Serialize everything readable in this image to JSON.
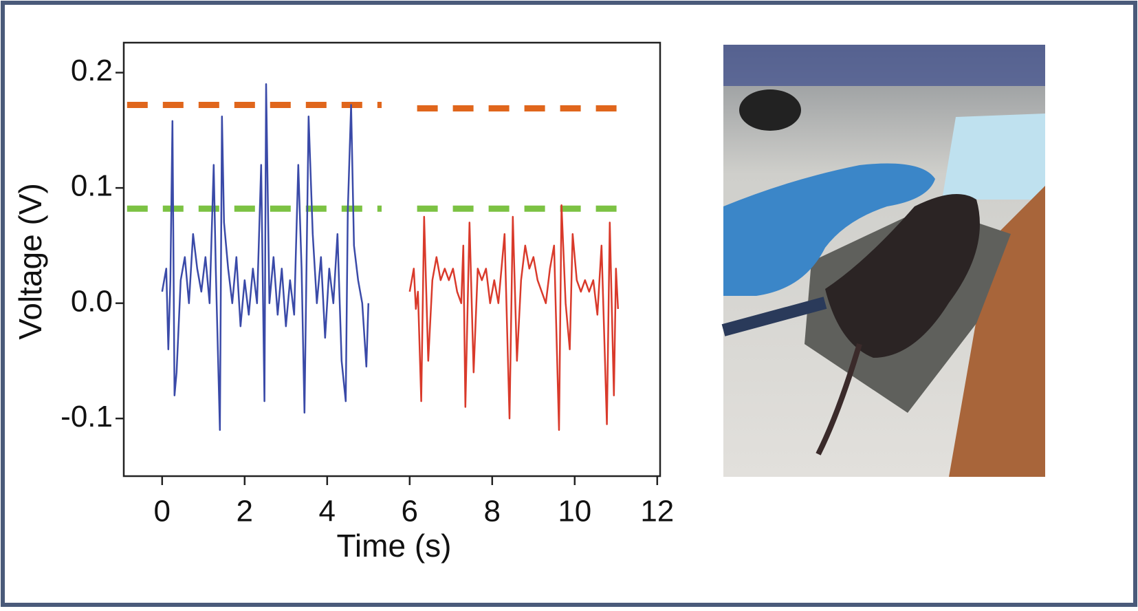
{
  "chart_data": {
    "type": "line",
    "xlabel": "Time (s)",
    "ylabel": "Voltage (V)",
    "xlim": [
      -0.93,
      12.07
    ],
    "ylim": [
      -0.15,
      0.226
    ],
    "xticks": [
      0,
      2,
      4,
      6,
      8,
      10,
      12
    ],
    "yticks": [
      -0.1,
      {
        "value": 0,
        "label": "0.0"
      },
      0.1,
      0.2
    ],
    "series": [
      {
        "color": "#3a4aa8",
        "x": [
          0.0,
          0.1,
          0.15,
          0.2,
          0.25,
          0.3,
          0.35,
          0.45,
          0.55,
          0.65,
          0.75,
          0.85,
          0.95,
          1.05,
          1.15,
          1.25,
          1.3,
          1.4,
          1.45,
          1.5,
          1.6,
          1.7,
          1.8,
          1.9,
          2.0,
          2.1,
          2.2,
          2.3,
          2.4,
          2.48,
          2.52,
          2.6,
          2.7,
          2.8,
          2.9,
          3.0,
          3.1,
          3.2,
          3.3,
          3.38,
          3.45,
          3.55,
          3.65,
          3.75,
          3.85,
          3.95,
          4.05,
          4.15,
          4.25,
          4.35,
          4.45,
          4.5,
          4.58,
          4.65,
          4.75,
          4.85,
          4.95,
          5.0
        ],
        "values": [
          0.01,
          0.03,
          -0.04,
          0.02,
          0.158,
          -0.08,
          -0.06,
          0.02,
          0.04,
          0.0,
          0.06,
          0.03,
          0.01,
          0.04,
          0.0,
          0.12,
          0.03,
          -0.11,
          0.162,
          0.07,
          0.03,
          0.0,
          0.04,
          -0.02,
          0.02,
          -0.01,
          0.03,
          0.0,
          0.12,
          -0.085,
          0.19,
          0.0,
          0.04,
          -0.01,
          0.03,
          -0.02,
          0.02,
          -0.01,
          0.12,
          0.03,
          -0.095,
          0.162,
          0.06,
          0.0,
          0.04,
          -0.03,
          0.03,
          0.0,
          0.06,
          -0.05,
          -0.085,
          0.08,
          0.172,
          0.05,
          0.02,
          0.0,
          -0.055,
          0.0
        ]
      },
      {
        "color": "#d93a2b",
        "x": [
          6.0,
          6.1,
          6.15,
          6.2,
          6.28,
          6.35,
          6.45,
          6.55,
          6.65,
          6.75,
          6.85,
          6.95,
          7.05,
          7.15,
          7.25,
          7.3,
          7.35,
          7.45,
          7.55,
          7.65,
          7.75,
          7.85,
          7.95,
          8.05,
          8.15,
          8.3,
          8.42,
          8.5,
          8.6,
          8.7,
          8.8,
          8.9,
          9.0,
          9.1,
          9.2,
          9.3,
          9.4,
          9.5,
          9.62,
          9.68,
          9.78,
          9.88,
          9.95,
          10.05,
          10.15,
          10.25,
          10.35,
          10.45,
          10.55,
          10.65,
          10.78,
          10.85,
          10.95,
          11.0,
          11.05
        ],
        "values": [
          0.01,
          0.03,
          -0.005,
          0.01,
          -0.085,
          0.075,
          -0.05,
          0.02,
          0.04,
          0.02,
          0.03,
          0.02,
          0.03,
          0.01,
          0.0,
          0.05,
          -0.09,
          0.07,
          -0.06,
          0.03,
          0.02,
          0.03,
          0.0,
          0.02,
          0.0,
          0.06,
          -0.1,
          0.075,
          -0.05,
          0.02,
          0.05,
          0.03,
          0.04,
          0.02,
          0.01,
          0.0,
          0.03,
          0.05,
          -0.11,
          0.085,
          0.0,
          -0.04,
          0.06,
          0.02,
          0.01,
          0.02,
          0.01,
          0.02,
          -0.01,
          0.05,
          -0.105,
          0.07,
          -0.08,
          0.03,
          -0.005
        ]
      }
    ],
    "reference_lines": [
      {
        "color": "#e0661c",
        "x": [
          -0.85,
          5.32
        ],
        "values": [
          0.172,
          0.172
        ]
      },
      {
        "color": "#e0661c",
        "x": [
          6.18,
          11.37
        ],
        "values": [
          0.169,
          0.169
        ]
      },
      {
        "color": "#7cc243",
        "x": [
          -0.85,
          5.32
        ],
        "values": [
          0.082,
          0.082
        ]
      },
      {
        "color": "#7cc243",
        "x": [
          6.18,
          11.37
        ],
        "values": [
          0.082,
          0.082
        ]
      }
    ]
  }
}
